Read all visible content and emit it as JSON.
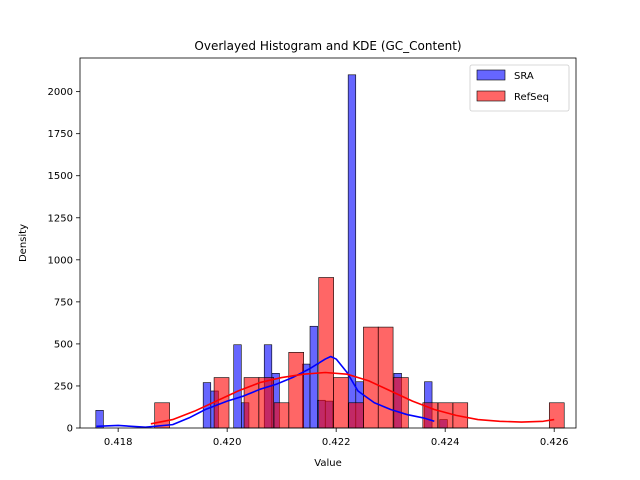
{
  "chart_data": {
    "type": "histogram",
    "title": "Overlayed Histogram and KDE (GC_Content)",
    "xlabel": "Value",
    "ylabel": "Density",
    "xlim": [
      0.4173,
      0.4264
    ],
    "ylim": [
      0,
      2200
    ],
    "x_ticks": [
      "0.418",
      "0.420",
      "0.422",
      "0.424",
      "0.426"
    ],
    "x_tick_values": [
      0.418,
      0.42,
      0.422,
      0.424,
      0.426
    ],
    "y_ticks": [
      "0",
      "250",
      "500",
      "750",
      "1000",
      "1250",
      "1500",
      "1750",
      "2000"
    ],
    "y_tick_values": [
      0,
      250,
      500,
      750,
      1000,
      1250,
      1500,
      1750,
      2000
    ],
    "legend": {
      "placement": "top-right"
    },
    "series": [
      {
        "name": "SRA",
        "color": "#0000ff",
        "bin_width": 0.000139,
        "bins": [
          {
            "x": 0.41759,
            "y": 105
          },
          {
            "x": 0.41956,
            "y": 270
          },
          {
            "x": 0.4197,
            "y": 220
          },
          {
            "x": 0.42012,
            "y": 495
          },
          {
            "x": 0.42026,
            "y": 150
          },
          {
            "x": 0.42068,
            "y": 495
          },
          {
            "x": 0.42082,
            "y": 325
          },
          {
            "x": 0.42138,
            "y": 380
          },
          {
            "x": 0.42152,
            "y": 605
          },
          {
            "x": 0.42166,
            "y": 165
          },
          {
            "x": 0.4218,
            "y": 160
          },
          {
            "x": 0.42222,
            "y": 2100
          },
          {
            "x": 0.42236,
            "y": 275
          },
          {
            "x": 0.42306,
            "y": 325
          },
          {
            "x": 0.42362,
            "y": 275
          },
          {
            "x": 0.4239,
            "y": 50
          }
        ],
        "kde": [
          [
            0.4176,
            10
          ],
          [
            0.418,
            15
          ],
          [
            0.4185,
            5
          ],
          [
            0.419,
            20
          ],
          [
            0.4193,
            60
          ],
          [
            0.4196,
            110
          ],
          [
            0.42,
            160
          ],
          [
            0.4203,
            190
          ],
          [
            0.4206,
            230
          ],
          [
            0.4209,
            260
          ],
          [
            0.4212,
            300
          ],
          [
            0.4215,
            350
          ],
          [
            0.4218,
            410
          ],
          [
            0.4219,
            425
          ],
          [
            0.422,
            410
          ],
          [
            0.4222,
            330
          ],
          [
            0.4224,
            220
          ],
          [
            0.4227,
            150
          ],
          [
            0.423,
            110
          ],
          [
            0.4233,
            80
          ],
          [
            0.4236,
            60
          ],
          [
            0.4238,
            40
          ]
        ]
      },
      {
        "name": "RefSeq",
        "color": "#ff0000",
        "bin_width": 0.000274,
        "bins": [
          {
            "x": 0.41867,
            "y": 150
          },
          {
            "x": 0.41976,
            "y": 300
          },
          {
            "x": 0.42031,
            "y": 300
          },
          {
            "x": 0.42058,
            "y": 300
          },
          {
            "x": 0.42086,
            "y": 150
          },
          {
            "x": 0.42113,
            "y": 450
          },
          {
            "x": 0.42168,
            "y": 895
          },
          {
            "x": 0.42195,
            "y": 300
          },
          {
            "x": 0.42223,
            "y": 150
          },
          {
            "x": 0.4225,
            "y": 600
          },
          {
            "x": 0.42277,
            "y": 600
          },
          {
            "x": 0.42305,
            "y": 300
          },
          {
            "x": 0.42359,
            "y": 150
          },
          {
            "x": 0.42387,
            "y": 150
          },
          {
            "x": 0.42414,
            "y": 150
          },
          {
            "x": 0.42591,
            "y": 150
          }
        ],
        "kde": [
          [
            0.4186,
            25
          ],
          [
            0.419,
            50
          ],
          [
            0.4194,
            100
          ],
          [
            0.4198,
            160
          ],
          [
            0.4202,
            220
          ],
          [
            0.4206,
            270
          ],
          [
            0.421,
            300
          ],
          [
            0.4214,
            320
          ],
          [
            0.4218,
            330
          ],
          [
            0.4222,
            320
          ],
          [
            0.4226,
            280
          ],
          [
            0.423,
            220
          ],
          [
            0.4234,
            160
          ],
          [
            0.4238,
            110
          ],
          [
            0.4242,
            75
          ],
          [
            0.4246,
            50
          ],
          [
            0.425,
            40
          ],
          [
            0.4254,
            35
          ],
          [
            0.4258,
            40
          ],
          [
            0.426,
            50
          ]
        ]
      }
    ]
  }
}
